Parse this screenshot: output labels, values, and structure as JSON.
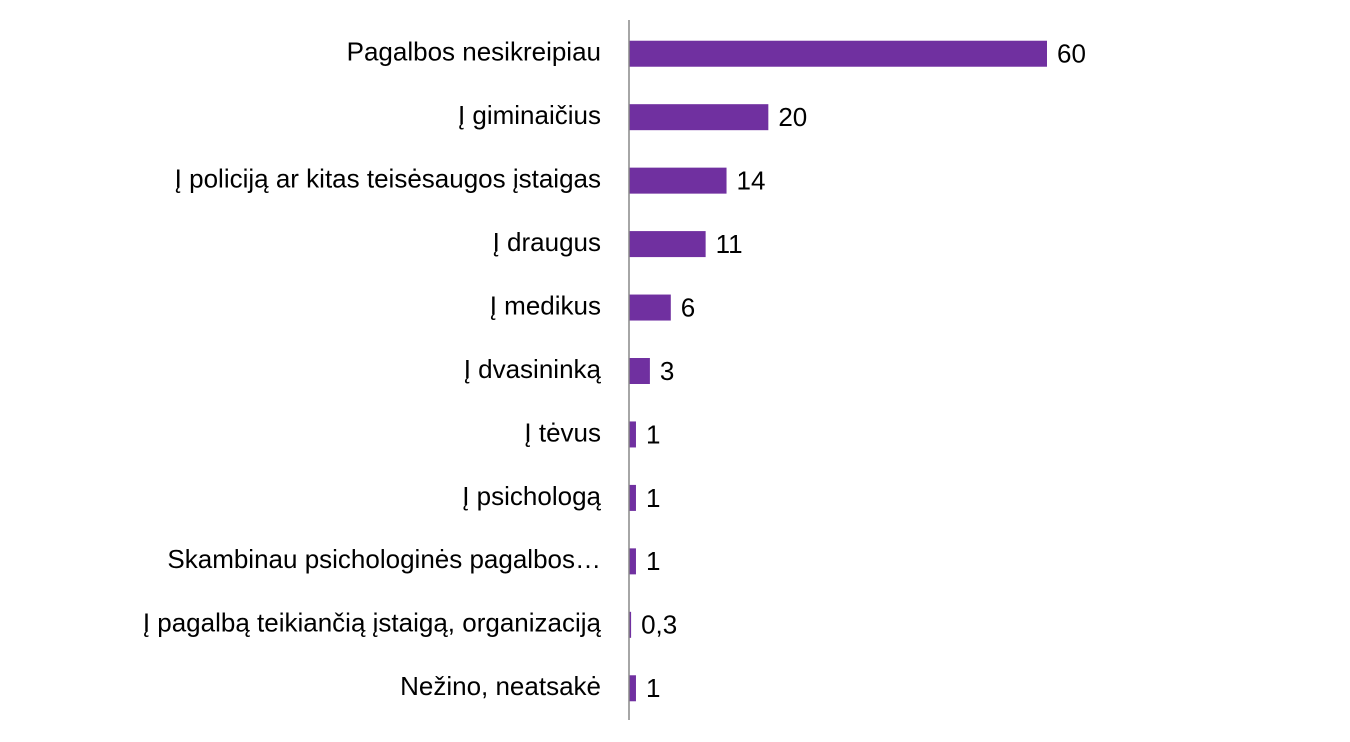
{
  "chart_data": {
    "type": "barh",
    "categories": [
      "Pagalbos nesikreipiau",
      "Į giminaičius",
      "Į policiją ar kitas teisėsaugos įstaigas",
      "Į draugus",
      "Į medikus",
      "Į dvasininką",
      "Į tėvus",
      "Į psichologą",
      "Skambinau psichologinės pagalbos…",
      "Į pagalbą teikiančią įstaigą, organizaciją",
      "Nežino, neatsakė"
    ],
    "values": [
      60,
      20,
      14,
      11,
      6,
      3,
      1,
      1,
      1,
      0.3,
      1
    ],
    "value_labels": [
      "60",
      "20",
      "14",
      "11",
      "6",
      "3",
      "1",
      "1",
      "1",
      "0,3",
      "1"
    ],
    "color": "#7030a0",
    "xlim": [
      0,
      60
    ]
  }
}
